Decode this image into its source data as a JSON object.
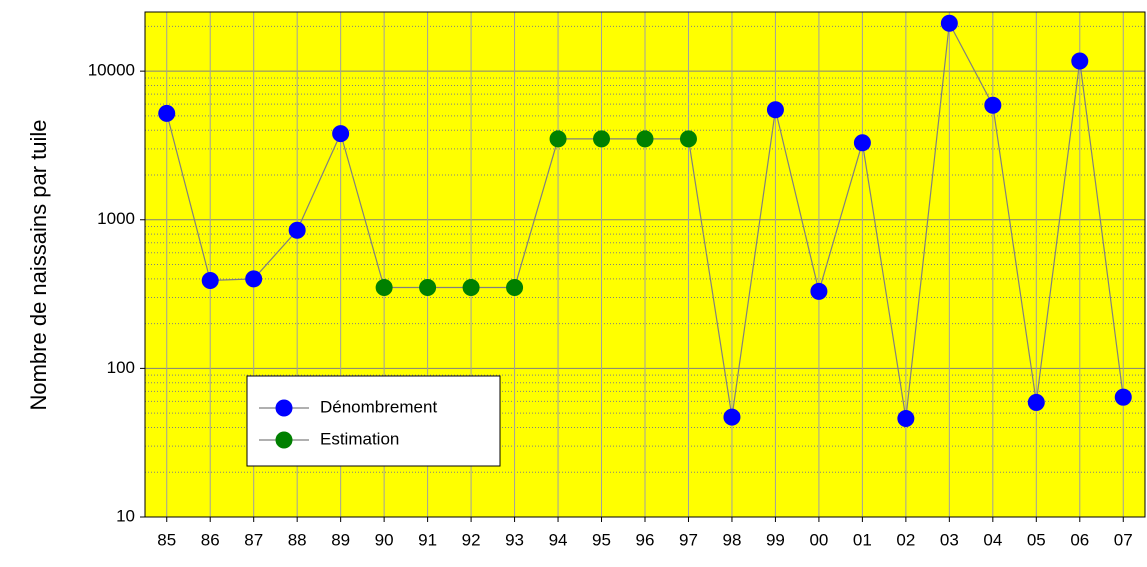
{
  "chart_data": {
    "type": "line",
    "y_label": "Nombre de naissains par tuile",
    "categories": [
      "85",
      "86",
      "87",
      "88",
      "89",
      "90",
      "91",
      "92",
      "93",
      "94",
      "95",
      "96",
      "97",
      "98",
      "99",
      "00",
      "01",
      "02",
      "03",
      "04",
      "05",
      "06",
      "07"
    ],
    "series": [
      {
        "name": "Dénombrement",
        "color": "#0000ff",
        "values": [
          5200,
          390,
          400,
          850,
          3800,
          null,
          null,
          null,
          null,
          null,
          null,
          null,
          null,
          47,
          5500,
          330,
          3300,
          46,
          21000,
          5900,
          59,
          11700,
          64
        ]
      },
      {
        "name": "Estimation",
        "color": "#008000",
        "values": [
          null,
          null,
          null,
          null,
          null,
          350,
          350,
          350,
          350,
          3500,
          3500,
          3500,
          3500,
          null,
          null,
          null,
          null,
          null,
          null,
          null,
          null,
          null,
          null
        ]
      }
    ],
    "line_color": "#808080",
    "y_log": true,
    "ylim": [
      10,
      25000
    ],
    "yticks": [
      10,
      100,
      1000,
      10000
    ],
    "yticks_minor": [
      20,
      30,
      40,
      50,
      60,
      70,
      80,
      90,
      200,
      300,
      400,
      500,
      600,
      700,
      800,
      900,
      2000,
      3000,
      4000,
      5000,
      6000,
      7000,
      8000,
      9000,
      20000
    ],
    "grid": true,
    "plot_background": "#ffff00",
    "legend": "lower left"
  }
}
